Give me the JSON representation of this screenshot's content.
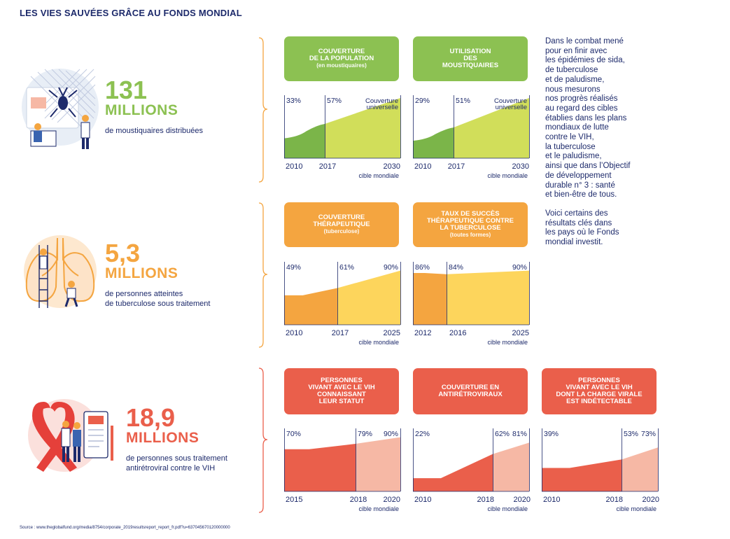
{
  "title": "LES VIES SAUVÉES GRÂCE AU FONDS MONDIAL",
  "rows": [
    {
      "stat_value": "131",
      "stat_unit": "MILLIONS",
      "stat_desc": [
        "de moustiquaires distribuées"
      ],
      "color": "#8cc152"
    },
    {
      "stat_value": "5,3",
      "stat_unit": "MILLIONS",
      "stat_desc": [
        "de personnes atteintes",
        "de tuberculose sous traitement"
      ],
      "color": "#f4a540"
    },
    {
      "stat_value": "18,9",
      "stat_unit": "MILLIONS",
      "stat_desc": [
        "de personnes sous traitement",
        "antirétroviral contre le VIH"
      ],
      "color": "#ea5f4b"
    }
  ],
  "side_text": {
    "p1": "Dans le combat mené\npour en finir avec\nles épidémies de sida,\nde tuberculose\net de paludisme,\nnous mesurons\nnos progrès réalisés\nau regard des cibles\nétablies dans les plans\nmondiaux de lutte\ncontre le VIH,\nla tuberculose\net le paludisme,\nainsi que dans l’Objectif\nde développement\ndurable n° 3 : santé\net bien-être de tous.",
    "p2": "Voici certains des\nrésultats clés dans\nles pays où le Fonds\nmondial investit."
  },
  "source": "Source : www.theglobalfund.org/media/8754/corporate_2019resultsreport_report_fr.pdf?u=637045670120000000",
  "chart_data": [
    {
      "type": "area",
      "title": [
        "COUVERTURE",
        "DE LA POPULATION"
      ],
      "subtitle": "(en moustiquaires)",
      "theme": "green",
      "x": [
        "2010",
        "2017",
        "2030"
      ],
      "values": [
        33,
        57,
        100
      ],
      "labels": [
        "33%",
        "57%",
        "Couverture universelle"
      ],
      "target_label": "cible mondiale",
      "colors": [
        "#7bb549",
        "#d1de5a"
      ]
    },
    {
      "type": "area",
      "title": [
        "UTILISATION",
        "DES",
        "MOUSTIQUAIRES"
      ],
      "subtitle": "",
      "theme": "green",
      "x": [
        "2010",
        "2017",
        "2030"
      ],
      "values": [
        29,
        51,
        100
      ],
      "labels": [
        "29%",
        "51%",
        "Couverture universelle"
      ],
      "target_label": "cible mondiale",
      "colors": [
        "#7bb549",
        "#d1de5a"
      ]
    },
    {
      "type": "area",
      "title": [
        "COUVERTURE",
        "THÉRAPEUTIQUE"
      ],
      "subtitle": "(tuberculose)",
      "theme": "orange",
      "x": [
        "2010",
        "2017",
        "2025"
      ],
      "values": [
        49,
        61,
        90
      ],
      "labels": [
        "49%",
        "61%",
        "90%"
      ],
      "target_label": "cible mondiale",
      "colors": [
        "#f4a540",
        "#fdd55c"
      ]
    },
    {
      "type": "area",
      "title": [
        "TAUX DE SUCCÈS",
        "THÉRAPEUTIQUE CONTRE",
        "LA TUBERCULOSE"
      ],
      "subtitle": "(toutes formes)",
      "theme": "orange",
      "x": [
        "2012",
        "2016",
        "2025"
      ],
      "values": [
        86,
        84,
        90
      ],
      "labels": [
        "86%",
        "84%",
        "90%"
      ],
      "target_label": "cible mondiale",
      "colors": [
        "#f4a540",
        "#fdd55c"
      ]
    },
    {
      "type": "area",
      "title": [
        "PERSONNES",
        "VIVANT AVEC LE VIH",
        "CONNAISSANT",
        "LEUR STATUT"
      ],
      "subtitle": "",
      "theme": "red",
      "x": [
        "2015",
        "2018",
        "2020"
      ],
      "values": [
        70,
        79,
        90
      ],
      "labels": [
        "70%",
        "79%",
        "90%"
      ],
      "target_label": "cible mondiale",
      "colors": [
        "#ea5f4b",
        "#f6b8a5"
      ]
    },
    {
      "type": "area",
      "title": [
        "COUVERTURE EN",
        "ANTIRÉTROVIRAUX"
      ],
      "subtitle": "",
      "theme": "red",
      "x": [
        "2010",
        "2018",
        "2020"
      ],
      "values": [
        22,
        62,
        81
      ],
      "labels": [
        "22%",
        "62%",
        "81%"
      ],
      "target_label": "cible mondiale",
      "colors": [
        "#ea5f4b",
        "#f6b8a5"
      ]
    },
    {
      "type": "area",
      "title": [
        "PERSONNES",
        "VIVANT AVEC LE VIH",
        "DONT LA CHARGE VIRALE",
        "EST INDÉTECTABLE"
      ],
      "subtitle": "",
      "theme": "red",
      "x": [
        "2010",
        "2018",
        "2020"
      ],
      "values": [
        39,
        53,
        73
      ],
      "labels": [
        "39%",
        "53%",
        "73%"
      ],
      "target_label": "cible mondiale",
      "colors": [
        "#ea5f4b",
        "#f6b8a5"
      ]
    }
  ]
}
